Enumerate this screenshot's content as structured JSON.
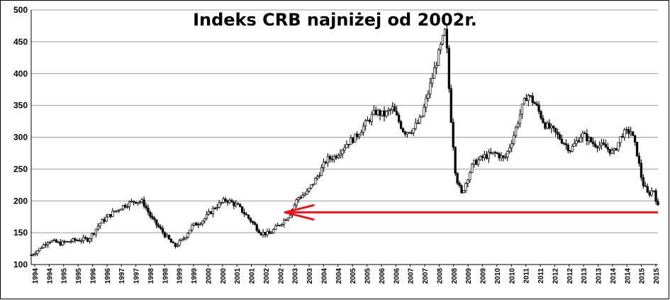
{
  "chart_data": {
    "type": "line",
    "subtype": "candlestick",
    "title": "Indeks CRB najniżej od 2002r.",
    "xlabel": "",
    "ylabel": "",
    "ylim": [
      100,
      500
    ],
    "yticks": [
      100,
      150,
      200,
      250,
      300,
      350,
      400,
      450,
      500
    ],
    "xlim": [
      1994.0,
      2015.85
    ],
    "xtick_labels": [
      "1994",
      "1994",
      "1995",
      "1995",
      "1996",
      "1996",
      "1997",
      "1997",
      "1998",
      "1998",
      "1999",
      "1999",
      "2000",
      "2000",
      "2001",
      "2001",
      "2002",
      "2002",
      "2003",
      "2003",
      "2004",
      "2004",
      "2005",
      "2005",
      "2006",
      "2006",
      "2007",
      "2007",
      "2008",
      "2008",
      "2009",
      "2009",
      "2010",
      "2010",
      "2011",
      "2011",
      "2012",
      "2012",
      "2013",
      "2013",
      "2014",
      "2014",
      "2015",
      "2015"
    ],
    "grid": "horizontal",
    "legend": "none",
    "series": [
      {
        "x": [
          1994.0,
          1994.3,
          1994.6,
          1995.0,
          1995.5,
          1996.0,
          1996.4,
          1996.8,
          1997.2,
          1997.6,
          1997.9,
          1998.2,
          1998.6,
          1999.0,
          1999.3,
          1999.6,
          2000.0,
          2000.4,
          2000.8,
          2001.2,
          2001.6,
          2002.0,
          2002.3,
          2002.7,
          2003.0,
          2003.3,
          2003.6,
          2004.0,
          2004.3,
          2004.6,
          2005.0,
          2005.3,
          2005.6,
          2006.0,
          2006.3,
          2006.6,
          2007.0,
          2007.3,
          2007.6,
          2007.9,
          2008.2,
          2008.45,
          2008.6,
          2008.8,
          2009.0,
          2009.2,
          2009.4,
          2009.8,
          2010.2,
          2010.5,
          2010.8,
          2011.1,
          2011.3,
          2011.6,
          2011.9,
          2012.2,
          2012.5,
          2012.8,
          2013.2,
          2013.6,
          2014.0,
          2014.3,
          2014.6,
          2014.9,
          2015.1,
          2015.3,
          2015.5,
          2015.7,
          2015.85
        ],
        "y": [
          115,
          125,
          138,
          133,
          138,
          140,
          165,
          180,
          192,
          200,
          198,
          172,
          150,
          128,
          140,
          160,
          170,
          190,
          202,
          192,
          172,
          150,
          148,
          165,
          178,
          205,
          212,
          240,
          265,
          270,
          290,
          300,
          318,
          340,
          335,
          345,
          308,
          312,
          330,
          380,
          430,
          470,
          350,
          240,
          210,
          235,
          258,
          270,
          275,
          265,
          300,
          345,
          368,
          350,
          320,
          310,
          295,
          280,
          305,
          290,
          285,
          275,
          305,
          310,
          280,
          230,
          210,
          218,
          190
        ],
        "color": "#000000"
      }
    ],
    "annotations": [
      {
        "type": "arrow",
        "direction": "left",
        "y": 182,
        "x_from": 2015.85,
        "x_to": 2002.85,
        "color": "#e8141c"
      }
    ]
  }
}
